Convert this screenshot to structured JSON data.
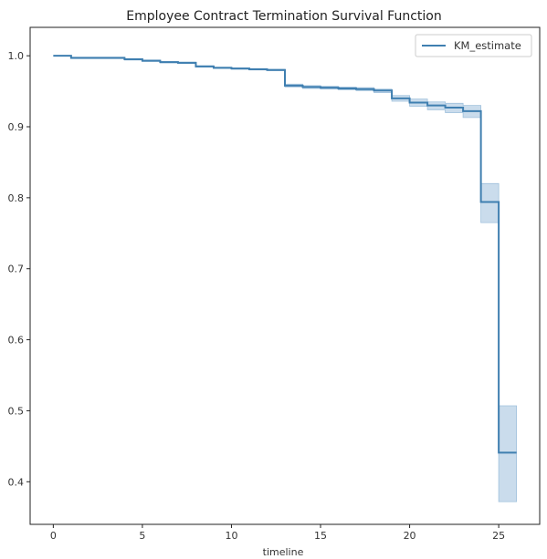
{
  "chart_data": {
    "type": "line",
    "title": "Employee Contract Termination Survival Function",
    "xlabel": "timeline",
    "ylabel": "",
    "xlim": [
      -1.3,
      27.3
    ],
    "ylim": [
      0.34,
      1.04
    ],
    "xticks": [
      0,
      5,
      10,
      15,
      20,
      25
    ],
    "yticks": [
      0.4,
      0.5,
      0.6,
      0.7,
      0.8,
      0.9,
      1.0
    ],
    "ytick_labels": [
      "0.4",
      "0.5",
      "0.6",
      "0.7",
      "0.8",
      "0.9",
      "1.0"
    ],
    "grid": false,
    "legend": {
      "position": "top-right",
      "entries": [
        "KM_estimate"
      ]
    },
    "colors": {
      "line": "#3f7fb0",
      "band": "#9fc0dc",
      "axis": "#222222"
    },
    "series": [
      {
        "name": "KM_estimate",
        "step": "post",
        "x": [
          0,
          1,
          4,
          5,
          6,
          7,
          8,
          9,
          10,
          11,
          12,
          13,
          14,
          15,
          16,
          17,
          18,
          19,
          20,
          21,
          22,
          23,
          24,
          25,
          26
        ],
        "values": [
          1.0,
          0.997,
          0.995,
          0.993,
          0.991,
          0.99,
          0.985,
          0.983,
          0.982,
          0.981,
          0.98,
          0.958,
          0.956,
          0.955,
          0.954,
          0.953,
          0.951,
          0.94,
          0.934,
          0.93,
          0.927,
          0.922,
          0.794,
          0.441,
          0.441
        ],
        "ci_lower": [
          1.0,
          0.996,
          0.994,
          0.992,
          0.99,
          0.989,
          0.984,
          0.982,
          0.981,
          0.98,
          0.979,
          0.956,
          0.954,
          0.953,
          0.952,
          0.951,
          0.948,
          0.936,
          0.929,
          0.924,
          0.92,
          0.913,
          0.765,
          0.372,
          0.372
        ],
        "ci_upper": [
          1.0,
          0.998,
          0.996,
          0.994,
          0.992,
          0.991,
          0.986,
          0.984,
          0.983,
          0.982,
          0.981,
          0.96,
          0.958,
          0.957,
          0.956,
          0.955,
          0.953,
          0.944,
          0.939,
          0.935,
          0.933,
          0.93,
          0.82,
          0.507,
          0.507
        ]
      }
    ]
  }
}
